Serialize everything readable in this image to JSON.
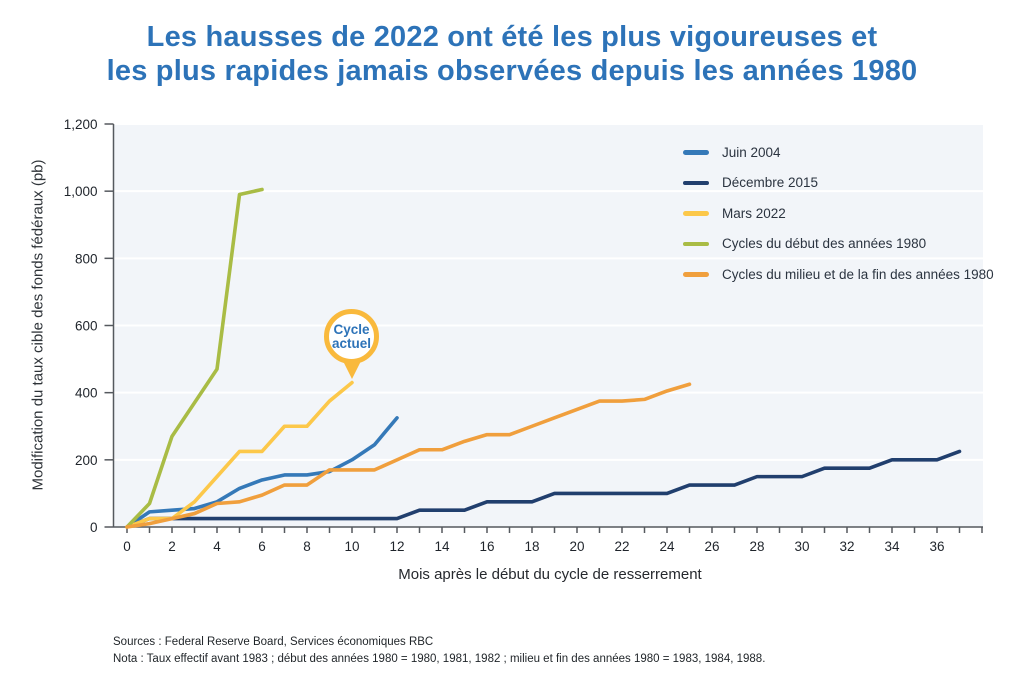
{
  "title": {
    "line1": "Les hausses de 2022 ont été les plus vigoureuses et",
    "line2": "les plus rapides jamais observées depuis les années 1980"
  },
  "annotation": {
    "line1": "Cycle",
    "line2": "actuel"
  },
  "footnotes": {
    "sources": "Sources : Federal Reserve Board, Services économiques RBC",
    "nota": "Nota : Taux effectif avant 1983 ; début des années 1980 = 1980, 1981, 1982 ; milieu et fin des années 1980 = 1983, 1984, 1988."
  },
  "colors": {
    "title_blue": "#2d73b8",
    "plot_background": "#f2f5f9",
    "gridline": "#ffffff",
    "axis": "#55595e",
    "tick_label": "#1f242b",
    "balloon_border": "#f9b93c"
  },
  "chart_data": {
    "type": "line",
    "title": "Les hausses de 2022 ont été les plus vigoureuses et les plus rapides jamais observées depuis les années 1980",
    "xlabel": "Mois après le début du cycle de resserrement",
    "ylabel": "Modification du taux cible des fonds fédéraux (pb)",
    "xlim": [
      0,
      38
    ],
    "ylim": [
      0,
      1200
    ],
    "grid": true,
    "legend_position": "upper right",
    "y_ticks": [
      0,
      200,
      400,
      600,
      800,
      1000,
      1200
    ],
    "y_tick_labels": [
      "0",
      "200",
      "400",
      "600",
      "800",
      "1,000",
      "1,200"
    ],
    "x_tick_labels": [
      0,
      2,
      4,
      6,
      8,
      10,
      12,
      14,
      16,
      18,
      20,
      22,
      24,
      26,
      28,
      30,
      32,
      34,
      36
    ],
    "annotation_note": "Balloon « Cycle actuel » points to the end of the Mars 2022 line (month 10, ~430 pb)",
    "series": [
      {
        "name": "Juin 2004",
        "color": "#3579b8",
        "x": [
          0,
          1,
          2,
          3,
          4,
          5,
          6,
          7,
          8,
          9,
          10,
          11,
          12
        ],
        "y": [
          0,
          45,
          50,
          55,
          75,
          115,
          140,
          155,
          155,
          165,
          200,
          245,
          325
        ]
      },
      {
        "name": "Décembre 2015",
        "color": "#213f6e",
        "x": [
          0,
          1,
          2,
          3,
          4,
          5,
          6,
          7,
          8,
          9,
          10,
          11,
          12,
          13,
          14,
          15,
          16,
          17,
          18,
          19,
          20,
          21,
          22,
          23,
          24,
          25,
          26,
          27,
          28,
          29,
          30,
          31,
          32,
          33,
          34,
          35,
          36,
          37
        ],
        "y": [
          0,
          25,
          25,
          25,
          25,
          25,
          25,
          25,
          25,
          25,
          25,
          25,
          25,
          50,
          50,
          50,
          75,
          75,
          75,
          100,
          100,
          100,
          100,
          100,
          100,
          125,
          125,
          125,
          150,
          150,
          150,
          175,
          175,
          175,
          200,
          200,
          200,
          225
        ]
      },
      {
        "name": "Mars 2022",
        "color": "#fcc84a",
        "x": [
          0,
          1,
          2,
          3,
          4,
          5,
          6,
          7,
          8,
          9,
          10
        ],
        "y": [
          0,
          25,
          25,
          75,
          150,
          225,
          225,
          300,
          300,
          375,
          430
        ]
      },
      {
        "name": "Cycles du début des années 1980",
        "color": "#a9bc45",
        "x": [
          0,
          1,
          2,
          3,
          4,
          5,
          6
        ],
        "y": [
          0,
          70,
          270,
          370,
          470,
          990,
          1005
        ]
      },
      {
        "name": "Cycles du milieu et de la fin des années 1980",
        "color": "#f09f3d",
        "x": [
          0,
          1,
          2,
          3,
          4,
          5,
          6,
          7,
          8,
          9,
          10,
          11,
          12,
          13,
          14,
          15,
          16,
          17,
          18,
          19,
          20,
          21,
          22,
          23,
          24,
          25
        ],
        "y": [
          0,
          10,
          25,
          40,
          70,
          75,
          95,
          125,
          125,
          170,
          170,
          170,
          200,
          230,
          230,
          255,
          275,
          275,
          300,
          325,
          350,
          375,
          375,
          380,
          405,
          425
        ]
      }
    ]
  }
}
